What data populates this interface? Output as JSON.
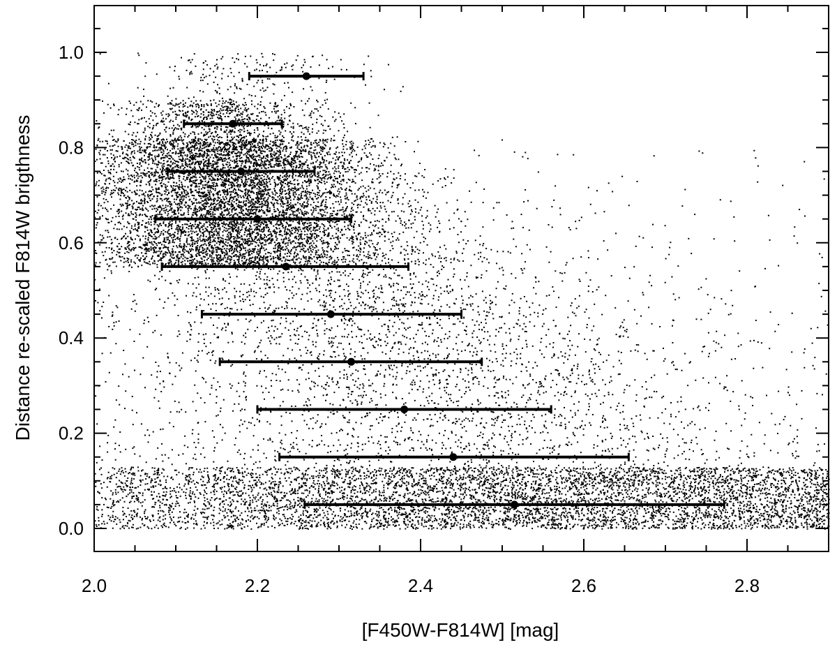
{
  "chart_data": {
    "type": "scatter",
    "title": "",
    "xlabel": "[F450W-F814W] [mag]",
    "ylabel": "Distance re-scaled F814W brigthness",
    "xlim": [
      2.0,
      2.9
    ],
    "ylim": [
      -0.05,
      1.1
    ],
    "grid": false,
    "x_ticks": [
      2.0,
      2.2,
      2.4,
      2.6,
      2.8
    ],
    "x_tick_labels": [
      "2.0",
      "2.2",
      "2.4",
      "2.6",
      "2.8"
    ],
    "y_ticks": [
      0.0,
      0.2,
      0.4,
      0.6,
      0.8,
      1.0
    ],
    "y_tick_labels": [
      "0.0",
      "0.2",
      "0.4",
      "0.6",
      "0.8",
      "1.0"
    ],
    "point_color": "#000000",
    "binned_means": [
      {
        "y": 0.95,
        "x": 2.26,
        "xmin": 2.19,
        "xmax": 2.33
      },
      {
        "y": 0.85,
        "x": 2.17,
        "xmin": 2.11,
        "xmax": 2.23
      },
      {
        "y": 0.75,
        "x": 2.18,
        "xmin": 2.09,
        "xmax": 2.27
      },
      {
        "y": 0.65,
        "x": 2.2,
        "xmin": 2.075,
        "xmax": 2.315
      },
      {
        "y": 0.55,
        "x": 2.235,
        "xmin": 2.083,
        "xmax": 2.385
      },
      {
        "y": 0.45,
        "x": 2.29,
        "xmin": 2.132,
        "xmax": 2.45
      },
      {
        "y": 0.35,
        "x": 2.315,
        "xmin": 2.154,
        "xmax": 2.475
      },
      {
        "y": 0.25,
        "x": 2.38,
        "xmin": 2.2,
        "xmax": 2.56
      },
      {
        "y": 0.15,
        "x": 2.44,
        "xmin": 2.227,
        "xmax": 2.655
      },
      {
        "y": 0.05,
        "x": 2.515,
        "xmin": 2.258,
        "xmax": 2.772
      }
    ]
  }
}
